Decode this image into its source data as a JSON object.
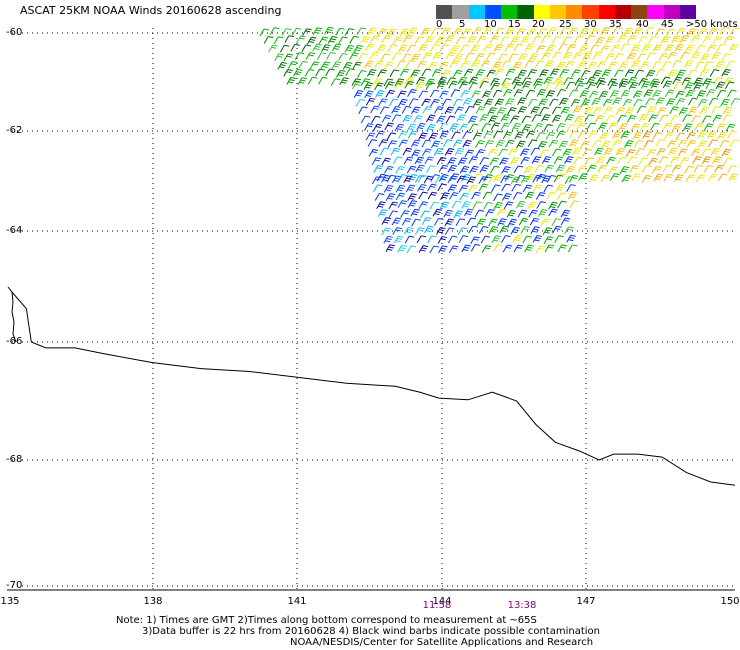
{
  "title": "ASCAT 25KM NOAA Winds 20160628 ascending",
  "legend": {
    "labels": [
      "0",
      "5",
      "10",
      "15",
      "20",
      "25",
      "30",
      "35",
      "40",
      "45",
      ">50 knots"
    ],
    "colors": [
      "#505050",
      "#a0a0a0",
      "#00c8ff",
      "#0050ff",
      "#00c000",
      "#006400",
      "#ffff00",
      "#ffc800",
      "#ff8c00",
      "#ff4000",
      "#ff0000",
      "#b40000",
      "#8b4513",
      "#ff00ff",
      "#c000c0",
      "#6000a0"
    ]
  },
  "lat_labels": [
    "-60",
    "-62",
    "-64",
    "-66",
    "-68",
    "-70"
  ],
  "lon_labels": [
    "135",
    "138",
    "141",
    "144",
    "147",
    "150"
  ],
  "time_labels": [
    "11:58",
    "13:38"
  ],
  "notes": {
    "line1": "Note: 1) Times are GMT 2)Times along bottom correspond to measurement at ~65S",
    "line2": "3)Data buffer is 22 hrs from 20160628 4) Black wind barbs indicate possible contamination",
    "line3": "NOAA/NESDIS/Center for Satellite Applications and Research"
  },
  "map": {
    "lat_range": [
      -70,
      -60
    ],
    "lon_range": [
      135,
      150
    ],
    "grid": "dotted",
    "coastline": [
      [
        135.1,
        -65.1
      ],
      [
        135.4,
        -65.4
      ],
      [
        135.5,
        -66.0
      ],
      [
        135.8,
        -66.1
      ],
      [
        136.4,
        -66.1
      ],
      [
        137.0,
        -66.2
      ],
      [
        138.0,
        -66.35
      ],
      [
        139.0,
        -66.45
      ],
      [
        140.0,
        -66.5
      ],
      [
        141.0,
        -66.6
      ],
      [
        142.0,
        -66.7
      ],
      [
        143.0,
        -66.75
      ],
      [
        143.5,
        -66.85
      ],
      [
        143.9,
        -66.95
      ],
      [
        144.5,
        -66.98
      ],
      [
        145.0,
        -66.85
      ],
      [
        145.5,
        -67.0
      ],
      [
        145.9,
        -67.4
      ],
      [
        146.3,
        -67.7
      ],
      [
        146.8,
        -67.85
      ],
      [
        147.2,
        -68.0
      ],
      [
        147.5,
        -67.9
      ],
      [
        148.0,
        -67.9
      ],
      [
        148.5,
        -67.95
      ],
      [
        149.0,
        -68.2
      ],
      [
        149.5,
        -68.35
      ],
      [
        150.0,
        -68.4
      ]
    ],
    "swath_bands": [
      {
        "name": "north",
        "lat_top": -59.9,
        "lat_bot": -61.0,
        "lon_left": 140.3,
        "lon_right": 150.0,
        "tilt": 0.6
      },
      {
        "name": "middle",
        "lat_top": -61.0,
        "lat_bot": -62.9,
        "lon_left": 142.2,
        "lon_right": 150.0,
        "tilt": 0.5
      },
      {
        "name": "south",
        "lat_top": -62.9,
        "lat_bot": -64.3,
        "lon_left": 142.6,
        "lon_right": 146.7,
        "tilt": 0.3
      }
    ]
  }
}
